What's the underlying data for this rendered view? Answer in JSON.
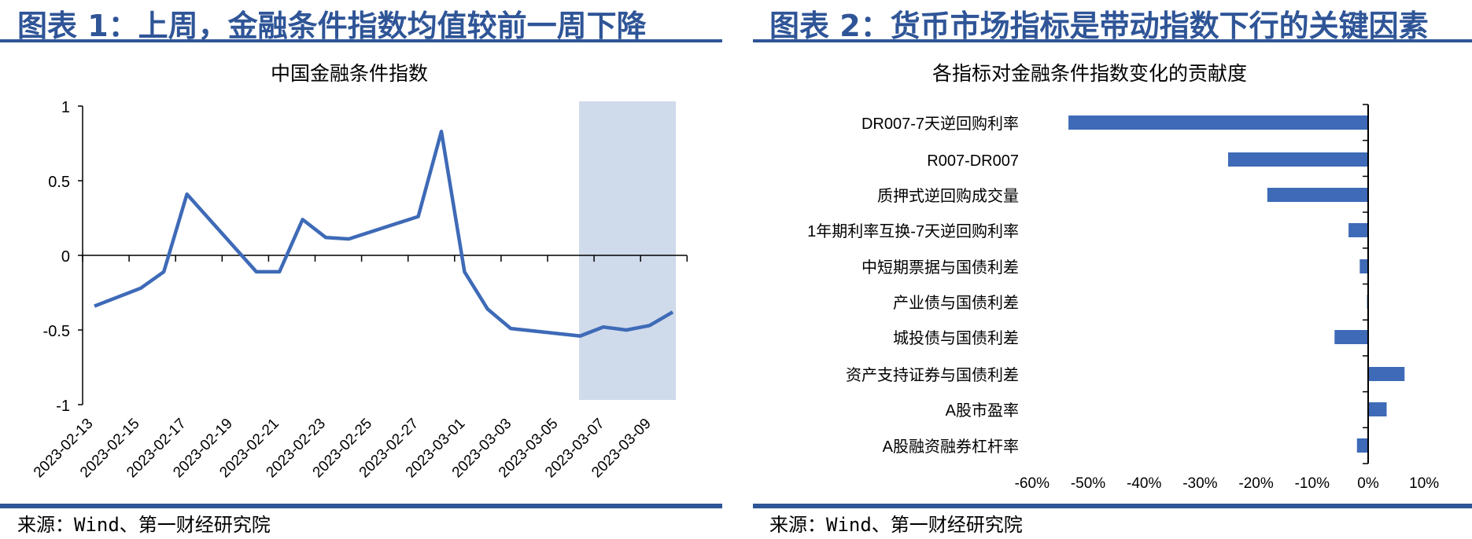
{
  "left": {
    "figure_title": "图表 1：上周，金融条件指数均值较前一周下降",
    "source": "来源：Wind、第一财经研究院"
  },
  "right": {
    "figure_title": "图表 2：货币市场指标是带动指数下行的关键因素",
    "source": "来源：Wind、第一财经研究院"
  },
  "colors": {
    "title_blue": "#2f5597",
    "series_blue": "#3e6ab7",
    "highlight_band": "#cfdaeb"
  },
  "chart_data": [
    {
      "type": "line",
      "title": "中国金融条件指数",
      "xlabel": "",
      "ylabel": "",
      "ylim": [
        -1,
        1
      ],
      "yticks": [
        "1",
        "0.5",
        "0",
        "-0.5",
        "-1"
      ],
      "xtick_labels": [
        "2023-02-13",
        "2023-02-15",
        "2023-02-17",
        "2023-02-19",
        "2023-02-21",
        "2023-02-23",
        "2023-02-25",
        "2023-02-27",
        "2023-03-01",
        "2023-03-03",
        "2023-03-05",
        "2023-03-07",
        "2023-03-09"
      ],
      "grid": false,
      "highlight_range": [
        "2023-03-06",
        "2023-03-10"
      ],
      "series": [
        {
          "name": "中国金融条件指数",
          "x": [
            "2023-02-13",
            "2023-02-15",
            "2023-02-16",
            "2023-02-17",
            "2023-02-20",
            "2023-02-21",
            "2023-02-22",
            "2023-02-23",
            "2023-02-24",
            "2023-02-27",
            "2023-02-28",
            "2023-03-01",
            "2023-03-02",
            "2023-03-03",
            "2023-03-06",
            "2023-03-07",
            "2023-03-08",
            "2023-03-09",
            "2023-03-10"
          ],
          "values": [
            -0.34,
            -0.22,
            -0.11,
            0.41,
            -0.11,
            -0.11,
            0.24,
            0.12,
            0.11,
            0.26,
            0.83,
            -0.11,
            -0.36,
            -0.49,
            -0.54,
            -0.48,
            -0.5,
            -0.47,
            -0.38
          ]
        }
      ]
    },
    {
      "type": "bar",
      "orientation": "horizontal",
      "title": "各指标对金融条件指数变化的贡献度",
      "xlabel": "",
      "ylabel": "",
      "xlim": [
        -60,
        10
      ],
      "xtick_labels": [
        "-60%",
        "-50%",
        "-40%",
        "-30%",
        "-20%",
        "-10%",
        "0%",
        "10%"
      ],
      "grid": false,
      "categories": [
        "DR007-7天逆回购利率",
        "R007-DR007",
        "质押式逆回购成交量",
        "1年期利率互换-7天逆回购利率",
        "中短期票据与国债利差",
        "产业债与国债利差",
        "城投债与国债利差",
        "资产支持证券与国债利差",
        "A股市盈率",
        "A股融资融券杠杆率"
      ],
      "values": [
        -53.5,
        -25.0,
        -18.0,
        -3.5,
        -1.5,
        -0.2,
        -6.0,
        6.5,
        3.3,
        -2.0
      ],
      "unit": "%"
    }
  ]
}
